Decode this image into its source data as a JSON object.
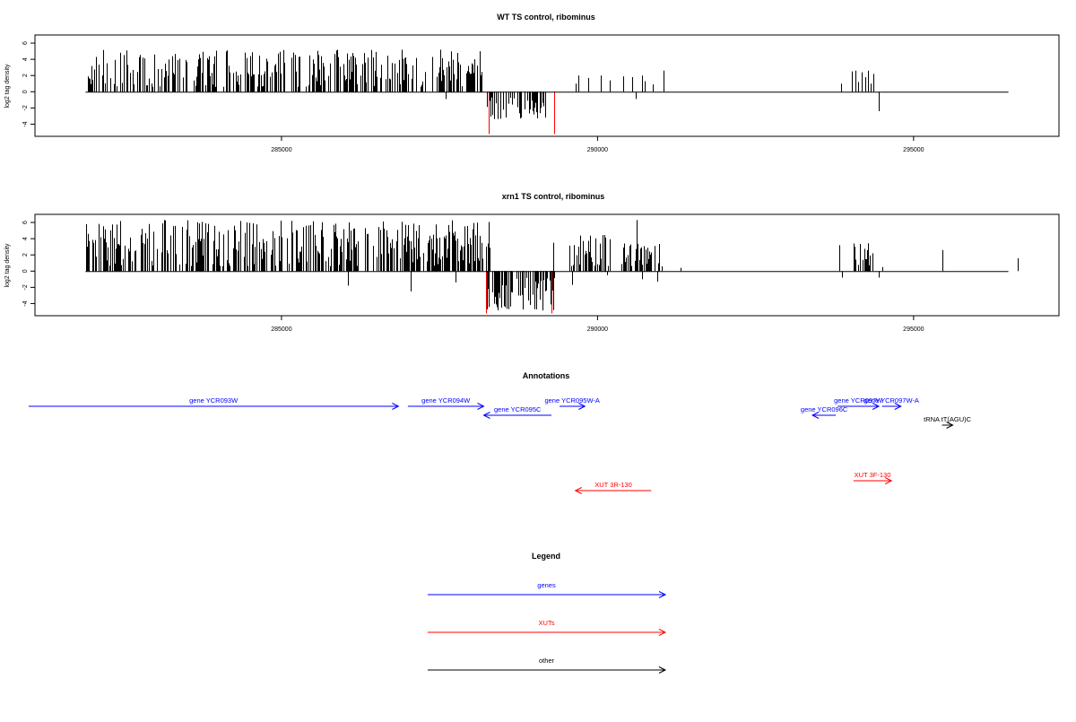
{
  "chart_data": [
    {
      "type": "bar",
      "title": "WT TS control, ribominus",
      "ylabel": "log2 tag density",
      "ylim": [
        -5.5,
        7
      ],
      "yticks": [
        -4,
        -2,
        0,
        2,
        4,
        6
      ],
      "xlim": [
        281100,
        297300
      ],
      "xticks": [
        285000,
        290000,
        295000
      ],
      "xticklabels": [
        "285000",
        "290000",
        "295000"
      ],
      "highlight_color": "#ff0000",
      "highlight_x": [
        288280,
        289310
      ],
      "bar_color": "#000000",
      "regions": [
        {
          "from": 281900,
          "to": 288200,
          "count": 300,
          "min": 0.6,
          "max": 5.2
        },
        {
          "from": 287400,
          "to": 288000,
          "count": 20,
          "min": 0.6,
          "max": 3.5
        },
        {
          "from": 288250,
          "to": 289250,
          "count": 45,
          "min": -3.6,
          "max": -0.6
        }
      ],
      "bars": [
        {
          "x": 287600,
          "y": -0.9
        },
        {
          "x": 288280,
          "y": -5.2
        },
        {
          "x": 289310,
          "y": -5.2
        },
        {
          "x": 289100,
          "y": -0.8
        },
        {
          "x": 289650,
          "y": 1.0
        },
        {
          "x": 289700,
          "y": 2.0
        },
        {
          "x": 289850,
          "y": 1.7
        },
        {
          "x": 290050,
          "y": 2.0
        },
        {
          "x": 290200,
          "y": 1.4
        },
        {
          "x": 290400,
          "y": 1.9
        },
        {
          "x": 290550,
          "y": 1.8
        },
        {
          "x": 290600,
          "y": -0.9
        },
        {
          "x": 290700,
          "y": 2.0
        },
        {
          "x": 290750,
          "y": 1.3
        },
        {
          "x": 290880,
          "y": 0.9
        },
        {
          "x": 291050,
          "y": 2.6
        },
        {
          "x": 293850,
          "y": 1.0
        },
        {
          "x": 294020,
          "y": 2.5
        },
        {
          "x": 294080,
          "y": 2.6
        },
        {
          "x": 294120,
          "y": 1.2
        },
        {
          "x": 294180,
          "y": 2.4
        },
        {
          "x": 294230,
          "y": 1.8
        },
        {
          "x": 294280,
          "y": 2.6
        },
        {
          "x": 294320,
          "y": 1.0
        },
        {
          "x": 294360,
          "y": 2.2
        },
        {
          "x": 294450,
          "y": -2.4
        }
      ]
    },
    {
      "type": "bar",
      "title": "xrn1 TS control, ribominus",
      "ylabel": "log2 tag density",
      "ylim": [
        -5.5,
        7
      ],
      "yticks": [
        -4,
        -2,
        0,
        2,
        4,
        6
      ],
      "xlim": [
        281100,
        297300
      ],
      "xticks": [
        285000,
        290000,
        295000
      ],
      "xticklabels": [
        "285000",
        "290000",
        "295000"
      ],
      "highlight_color": "#ff0000",
      "highlight_x": [
        288230,
        289270
      ],
      "bar_color": "#000000",
      "regions": [
        {
          "from": 281900,
          "to": 288300,
          "count": 360,
          "min": 0.6,
          "max": 6.3
        },
        {
          "from": 287000,
          "to": 288300,
          "count": 60,
          "min": 0.8,
          "max": 4.6
        },
        {
          "from": 288230,
          "to": 289330,
          "count": 80,
          "min": -5.0,
          "max": -0.8
        },
        {
          "from": 289550,
          "to": 290200,
          "count": 45,
          "min": 0.6,
          "max": 4.5
        },
        {
          "from": 290350,
          "to": 291050,
          "count": 40,
          "min": 0.6,
          "max": 3.8
        },
        {
          "from": 294050,
          "to": 294350,
          "count": 24,
          "min": 0.6,
          "max": 3.5
        }
      ],
      "bars": [
        {
          "x": 286050,
          "y": -1.8
        },
        {
          "x": 287050,
          "y": -2.5
        },
        {
          "x": 287750,
          "y": -1.4
        },
        {
          "x": 288230,
          "y": -5.2
        },
        {
          "x": 289270,
          "y": -5.2
        },
        {
          "x": 289300,
          "y": 3.5
        },
        {
          "x": 289600,
          "y": -1.7
        },
        {
          "x": 290150,
          "y": -0.5
        },
        {
          "x": 290620,
          "y": 6.3
        },
        {
          "x": 290700,
          "y": -1.0
        },
        {
          "x": 290950,
          "y": -1.3
        },
        {
          "x": 291320,
          "y": 0.4
        },
        {
          "x": 293830,
          "y": 3.2
        },
        {
          "x": 293860,
          "y": -0.8
        },
        {
          "x": 294450,
          "y": -0.8
        },
        {
          "x": 294500,
          "y": 0.5
        },
        {
          "x": 295450,
          "y": 2.6
        },
        {
          "x": 296650,
          "y": 1.6
        }
      ]
    }
  ],
  "annotations": {
    "title": "Annotations",
    "items": [
      {
        "label": "gene YCR093W",
        "from": 281000,
        "to": 286850,
        "row": 0,
        "color": "#0000ff"
      },
      {
        "label": "gene YCR094W",
        "from": 287000,
        "to": 288200,
        "row": 0,
        "color": "#0000ff"
      },
      {
        "label": "gene YCR095C",
        "from": 289270,
        "to": 288200,
        "row": 1,
        "color": "#0000ff"
      },
      {
        "label": "gene YCR095W-A",
        "from": 289400,
        "to": 289800,
        "row": 0,
        "color": "#0000ff"
      },
      {
        "label": "gene YCR096C",
        "from": 293770,
        "to": 293400,
        "row": 1,
        "color": "#0000ff"
      },
      {
        "label": "gene YCR097W",
        "from": 293800,
        "to": 294450,
        "row": 0,
        "color": "#0000ff"
      },
      {
        "label": "gene YCR097W-A",
        "from": 294500,
        "to": 294800,
        "row": 0,
        "color": "#0000ff"
      },
      {
        "label": "tRNA tT(AGU)C",
        "from": 295450,
        "to": 295620,
        "row": 2,
        "color": "#000000"
      },
      {
        "label": "XUT 3R-130",
        "from": 290850,
        "to": 289650,
        "row": 4,
        "color": "#ff0000"
      },
      {
        "label": "XUT 3F-130",
        "from": 294050,
        "to": 294650,
        "row": 3,
        "color": "#ff0000"
      }
    ]
  },
  "legend": {
    "title": "Legend",
    "items": [
      {
        "label": "genes",
        "color": "#0000ff"
      },
      {
        "label": "XUTs",
        "color": "#ff0000"
      },
      {
        "label": "other",
        "color": "#000000"
      }
    ]
  }
}
